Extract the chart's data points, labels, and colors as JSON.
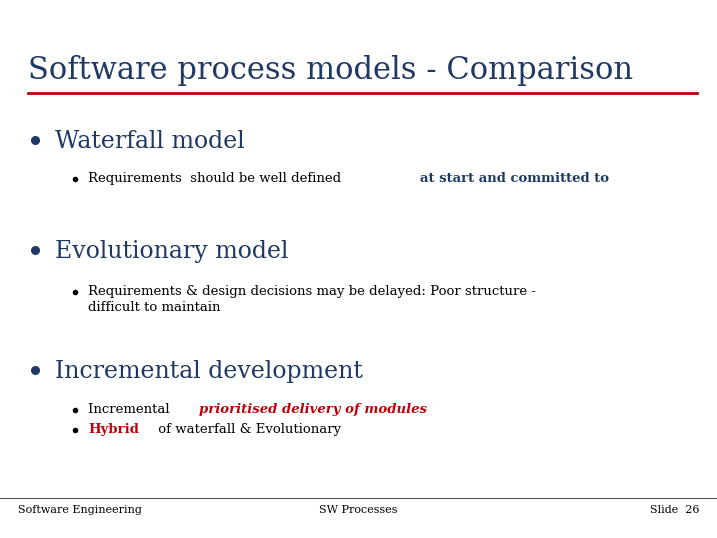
{
  "title": "Software process models - Comparison",
  "title_color": "#1F3864",
  "title_fontsize": 22,
  "separator_color": "#C0000A",
  "background_color": "#FFFFFF",
  "bullet1_header": "Waterfall model",
  "bullet1_sub_plain": "Requirements  should be well defined ",
  "bullet1_sub_colored": "at start and committed to",
  "bullet1_sub_color": "#1F3864",
  "bullet2_header": "Evolutionary model",
  "bullet2_sub_line1": "Requirements & design decisions may be delayed: Poor structure -",
  "bullet2_sub_line2": "difficult to maintain",
  "bullet3_header": "Incremental development",
  "bullet3_sub1_plain": "Incremental ",
  "bullet3_sub1_colored": "prioritised delivery of modules",
  "bullet3_sub1_color": "#C0000A",
  "bullet3_sub2_colored": "Hybrid",
  "bullet3_sub2_color": "#C0000A",
  "bullet3_sub2_plain": " of waterfall & Evolutionary",
  "footer_left": "Software Engineering",
  "footer_center": "SW Processes",
  "footer_right": "Slide  26",
  "footer_color": "#000000",
  "footer_fontsize": 8,
  "header_color": "#1F3864",
  "bullet_color": "#1F3864",
  "sub_bullet_color": "#000000",
  "header_fontsize": 17,
  "sub_fontsize": 9.5,
  "fig_width": 7.17,
  "fig_height": 5.38,
  "dpi": 100
}
